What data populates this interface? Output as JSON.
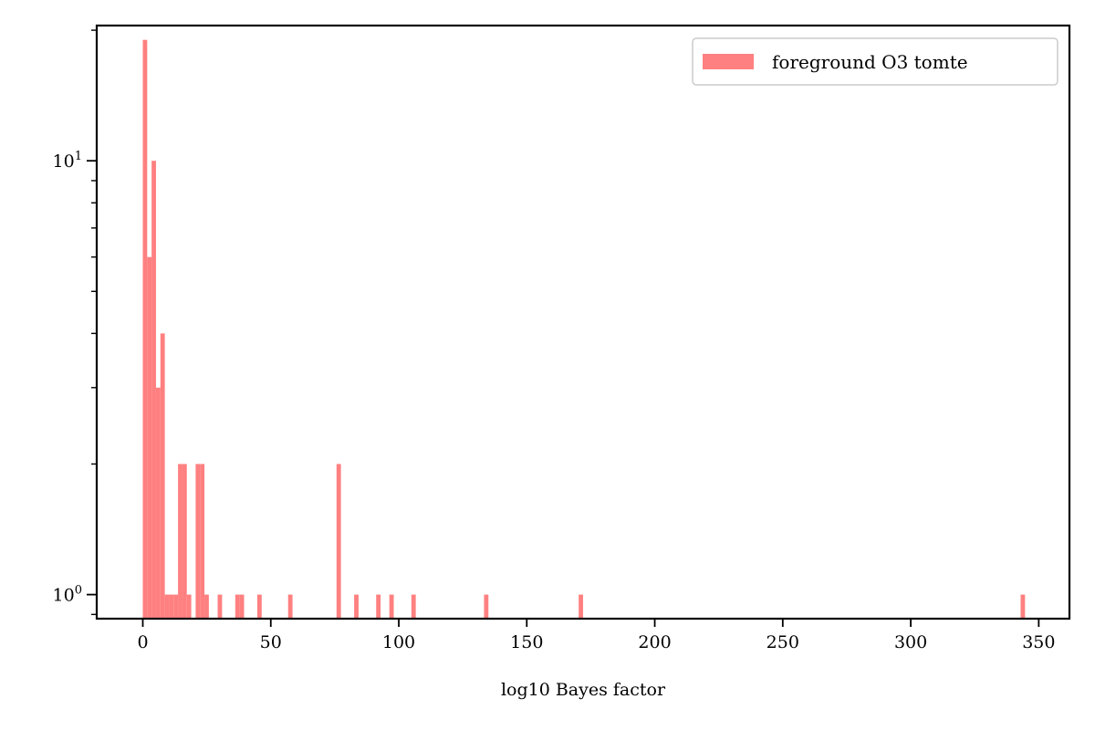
{
  "chart_data": {
    "type": "bar",
    "title": "",
    "xlabel": "log10 Bayes factor",
    "ylabel": "",
    "x_ticks": [
      "0",
      "50",
      "100",
      "150",
      "200",
      "250",
      "300",
      "350"
    ],
    "x_tick_values": [
      0,
      50,
      100,
      150,
      200,
      250,
      300,
      350
    ],
    "y_scale": "log",
    "y_major_ticks": [
      1,
      10
    ],
    "y_major_labels": [
      {
        "mantissa": "10",
        "exponent": "0"
      },
      {
        "mantissa": "10",
        "exponent": "1"
      }
    ],
    "xlim": [
      -18,
      362
    ],
    "ylim": [
      0.88,
      20.5
    ],
    "bin_width": 1.72,
    "legend": {
      "placement": "top-right",
      "entries": [
        "foreground O3 tomte"
      ]
    },
    "grid": false,
    "series": [
      {
        "name": "foreground O3 tomte",
        "color": "#ff8080",
        "bins": [
          {
            "x": 0.0,
            "count": 19
          },
          {
            "x": 1.72,
            "count": 6
          },
          {
            "x": 3.44,
            "count": 10
          },
          {
            "x": 5.16,
            "count": 3
          },
          {
            "x": 6.88,
            "count": 4
          },
          {
            "x": 8.6,
            "count": 1
          },
          {
            "x": 10.32,
            "count": 1
          },
          {
            "x": 12.04,
            "count": 1
          },
          {
            "x": 13.76,
            "count": 2
          },
          {
            "x": 15.48,
            "count": 2
          },
          {
            "x": 17.2,
            "count": 1
          },
          {
            "x": 20.64,
            "count": 2
          },
          {
            "x": 22.36,
            "count": 2
          },
          {
            "x": 24.08,
            "count": 1
          },
          {
            "x": 29.24,
            "count": 1
          },
          {
            "x": 36.12,
            "count": 1
          },
          {
            "x": 37.84,
            "count": 1
          },
          {
            "x": 44.72,
            "count": 1
          },
          {
            "x": 56.76,
            "count": 1
          },
          {
            "x": 75.68,
            "count": 2
          },
          {
            "x": 82.56,
            "count": 1
          },
          {
            "x": 91.16,
            "count": 1
          },
          {
            "x": 96.32,
            "count": 1
          },
          {
            "x": 104.92,
            "count": 1
          },
          {
            "x": 133.3,
            "count": 1
          },
          {
            "x": 170.28,
            "count": 1
          },
          {
            "x": 342.92,
            "count": 1
          }
        ]
      }
    ]
  }
}
